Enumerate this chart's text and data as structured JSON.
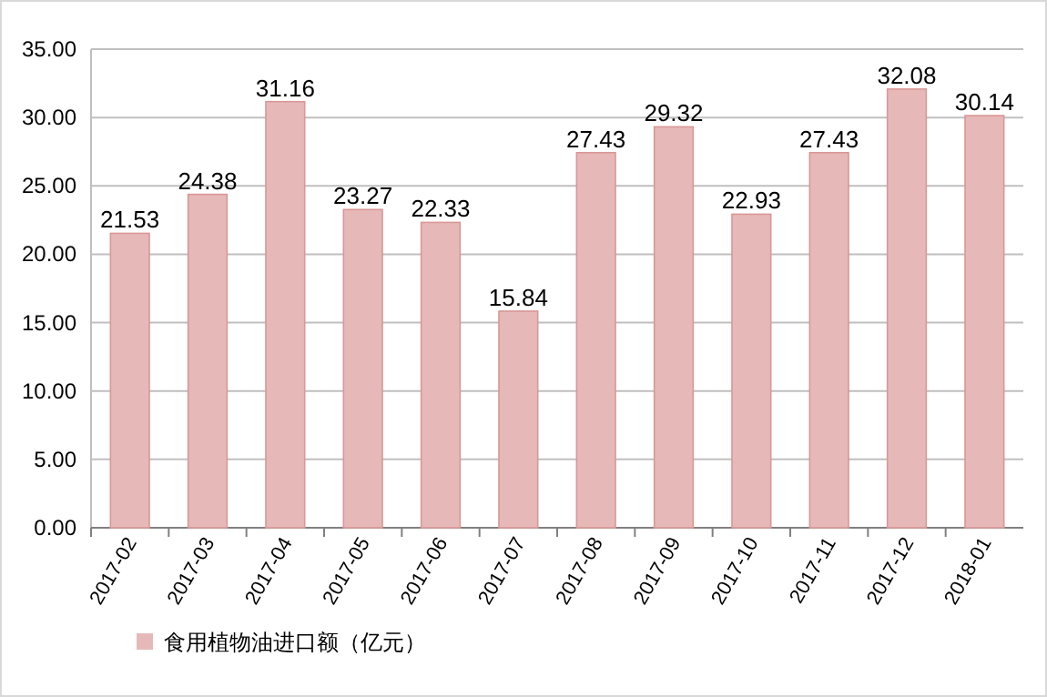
{
  "chart_data": {
    "type": "bar",
    "categories": [
      "2017-02",
      "2017-03",
      "2017-04",
      "2017-05",
      "2017-06",
      "2017-07",
      "2017-08",
      "2017-09",
      "2017-10",
      "2017-11",
      "2017-12",
      "2018-01"
    ],
    "series": [
      {
        "name": "食用植物油进口额（亿元）",
        "color": "#e6b9b8",
        "values": [
          21.53,
          24.38,
          31.16,
          23.27,
          22.33,
          15.84,
          27.43,
          29.32,
          22.93,
          27.43,
          32.08,
          30.14
        ]
      }
    ],
    "ylim": [
      0,
      35
    ],
    "yticks": [
      {
        "value": 0,
        "label": "0.00"
      },
      {
        "value": 5,
        "label": "5.00"
      },
      {
        "value": 10,
        "label": "10.00"
      },
      {
        "value": 15,
        "label": "15.00"
      },
      {
        "value": 20,
        "label": "20.00"
      },
      {
        "value": 25,
        "label": "25.00"
      },
      {
        "value": 30,
        "label": "30.00"
      },
      {
        "value": 35,
        "label": "35.00"
      }
    ],
    "grid": "y",
    "legend": "bottom left",
    "data_labels": true
  }
}
